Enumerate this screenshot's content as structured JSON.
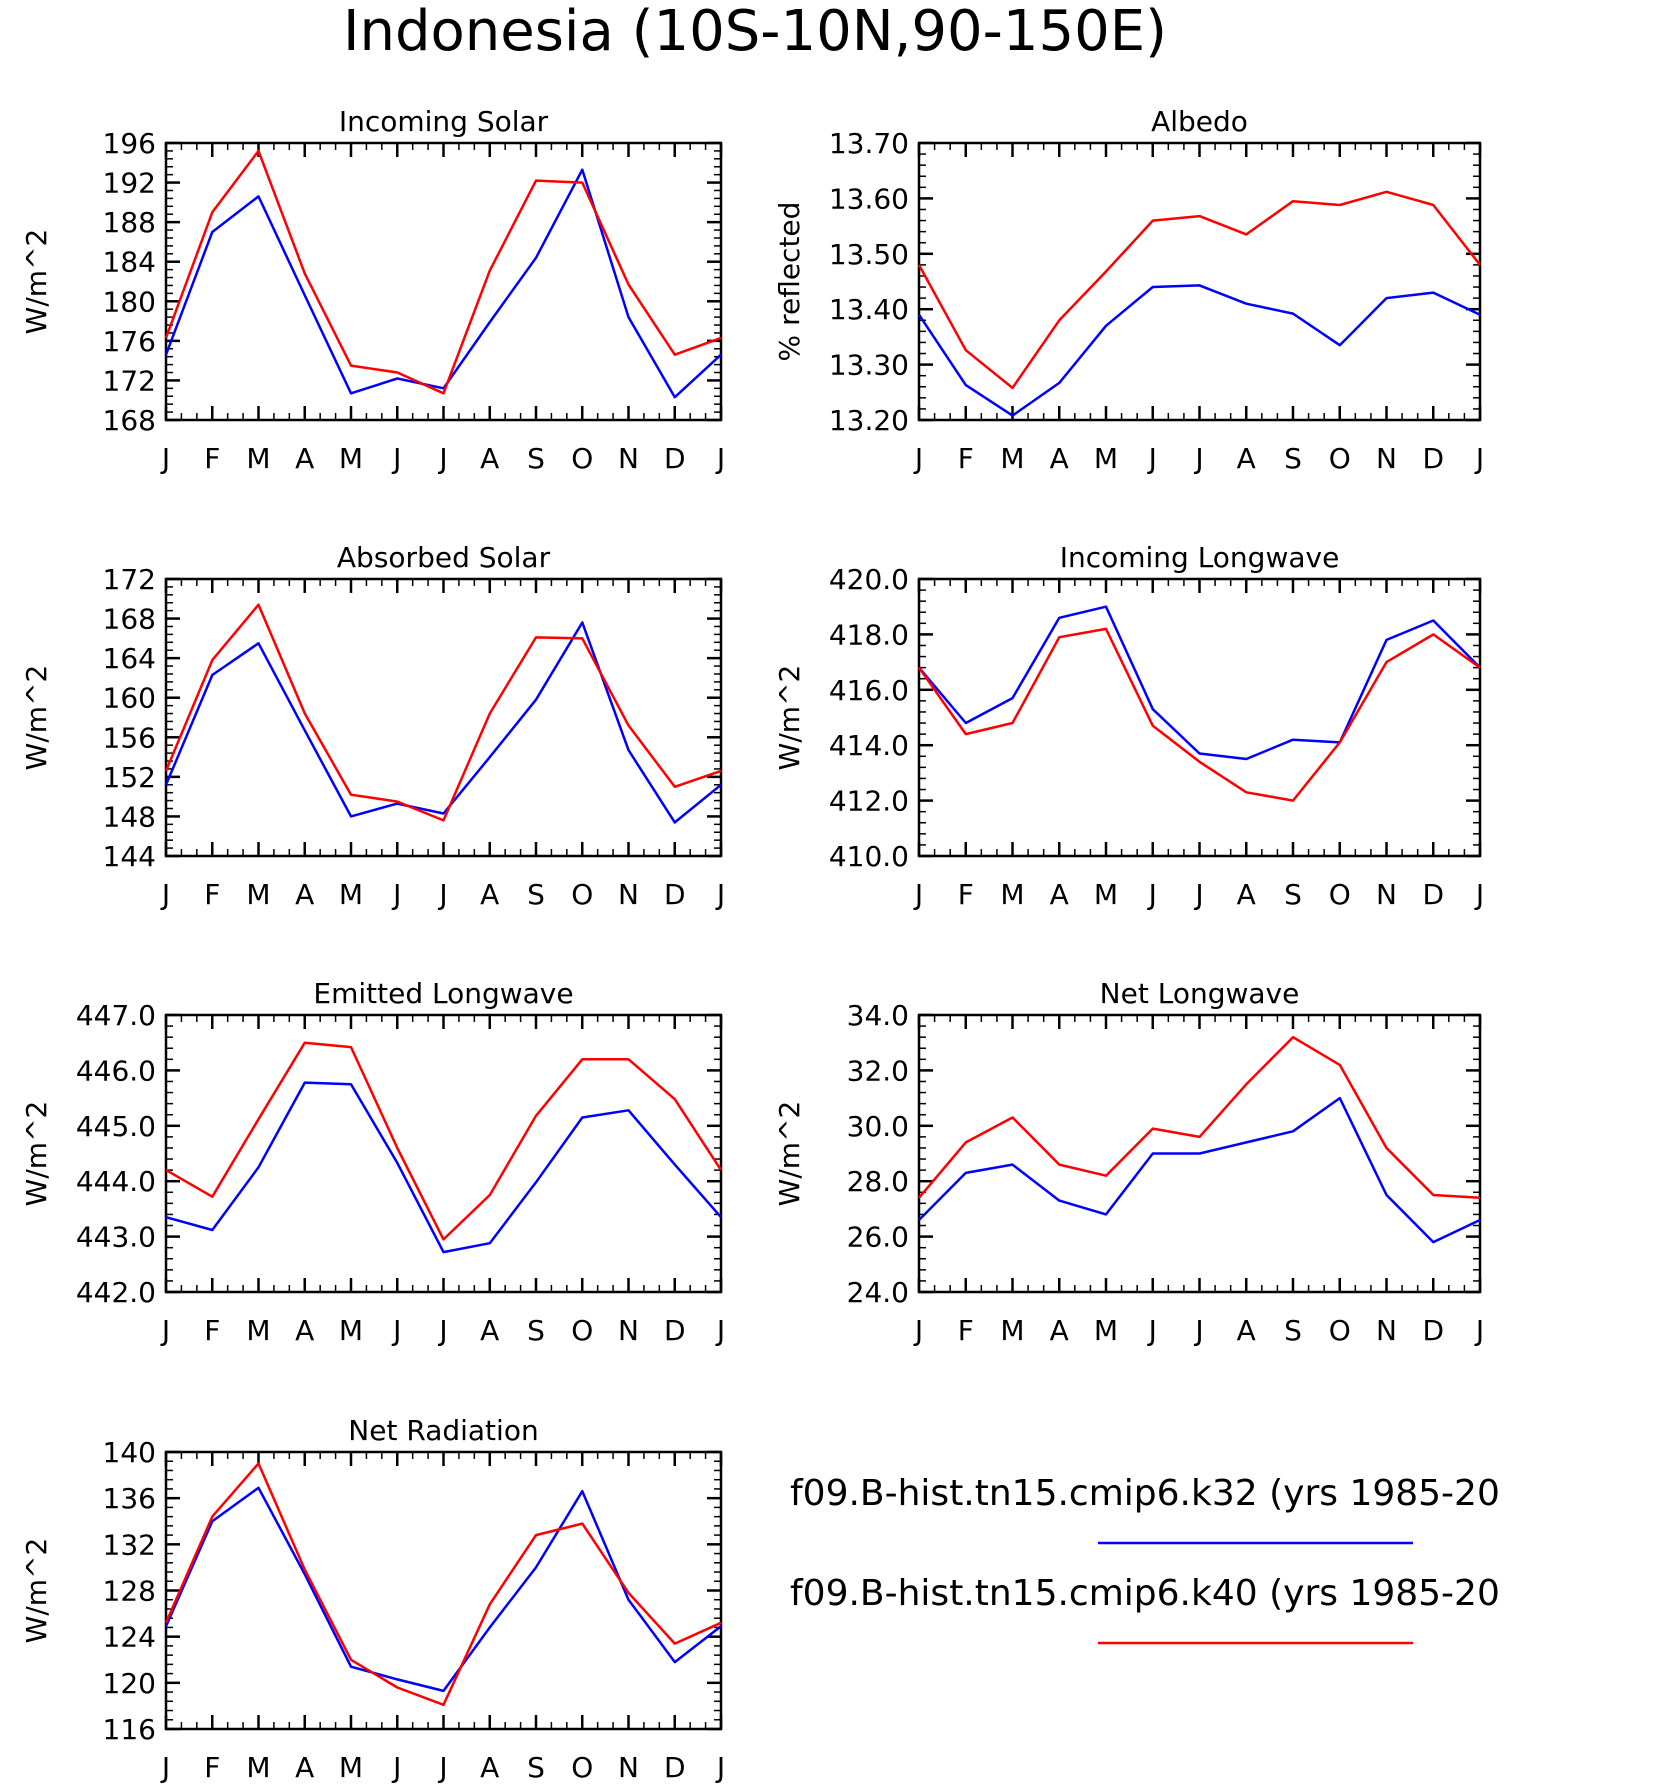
{
  "page_title": "Indonesia (10S-10N,90-150E)",
  "legend": [
    {
      "label": "f09.B-hist.tn15.cmip6.k32 (yrs 1985-20",
      "color": "#0000ff"
    },
    {
      "label": "f09.B-hist.tn15.cmip6.k40 (yrs 1985-20",
      "color": "#ff0000"
    }
  ],
  "chart_data": [
    {
      "type": "line",
      "title": "Incoming Solar",
      "ylabel": "W/m^2",
      "categories": [
        "J",
        "F",
        "M",
        "A",
        "M",
        "J",
        "J",
        "A",
        "S",
        "O",
        "N",
        "D",
        "J"
      ],
      "ylim": [
        168,
        196
      ],
      "yticks": [
        "168",
        "172",
        "176",
        "180",
        "184",
        "188",
        "192",
        "196"
      ],
      "series": [
        {
          "color": "#0000ff",
          "values": [
            174.6,
            187.0,
            190.6,
            180.6,
            170.7,
            172.2,
            171.2,
            177.9,
            184.4,
            193.3,
            178.4,
            170.3,
            174.6
          ]
        },
        {
          "color": "#ff0000",
          "values": [
            176.3,
            189.0,
            195.2,
            182.8,
            173.5,
            172.8,
            170.7,
            183.1,
            192.2,
            192.0,
            181.7,
            174.6,
            176.3
          ]
        }
      ]
    },
    {
      "type": "line",
      "title": "Albedo",
      "ylabel": "% reflected",
      "categories": [
        "J",
        "F",
        "M",
        "A",
        "M",
        "J",
        "J",
        "A",
        "S",
        "O",
        "N",
        "D",
        "J"
      ],
      "ylim": [
        13.2,
        13.7
      ],
      "yticks": [
        "13.20",
        "13.30",
        "13.40",
        "13.50",
        "13.60",
        "13.70"
      ],
      "series": [
        {
          "color": "#0000ff",
          "values": [
            13.39,
            13.263,
            13.208,
            13.267,
            13.37,
            13.44,
            13.443,
            13.41,
            13.392,
            13.335,
            13.42,
            13.43,
            13.39
          ]
        },
        {
          "color": "#ff0000",
          "values": [
            13.48,
            13.326,
            13.258,
            13.38,
            13.468,
            13.56,
            13.568,
            13.535,
            13.595,
            13.588,
            13.612,
            13.588,
            13.48
          ]
        }
      ]
    },
    {
      "type": "line",
      "title": "Absorbed Solar",
      "ylabel": "W/m^2",
      "categories": [
        "J",
        "F",
        "M",
        "A",
        "M",
        "J",
        "J",
        "A",
        "S",
        "O",
        "N",
        "D",
        "J"
      ],
      "ylim": [
        144,
        172
      ],
      "yticks": [
        "144",
        "148",
        "152",
        "156",
        "160",
        "164",
        "168",
        "172"
      ],
      "series": [
        {
          "color": "#0000ff",
          "values": [
            151.2,
            162.3,
            165.5,
            156.7,
            148.0,
            149.3,
            148.3,
            154.0,
            159.8,
            167.6,
            154.7,
            147.4,
            151.2
          ]
        },
        {
          "color": "#ff0000",
          "values": [
            152.6,
            163.8,
            169.4,
            158.4,
            150.2,
            149.5,
            147.6,
            158.4,
            166.1,
            166.0,
            157.2,
            151.0,
            152.6
          ]
        }
      ]
    },
    {
      "type": "line",
      "title": "Incoming Longwave",
      "ylabel": "W/m^2",
      "categories": [
        "J",
        "F",
        "M",
        "A",
        "M",
        "J",
        "J",
        "A",
        "S",
        "O",
        "N",
        "D",
        "J"
      ],
      "ylim": [
        410,
        420
      ],
      "yticks": [
        "410.0",
        "412.0",
        "414.0",
        "416.0",
        "418.0",
        "420.0"
      ],
      "series": [
        {
          "color": "#0000ff",
          "values": [
            416.8,
            414.8,
            415.7,
            418.6,
            419.0,
            415.3,
            413.7,
            413.5,
            414.2,
            414.1,
            417.8,
            418.5,
            416.8
          ]
        },
        {
          "color": "#ff0000",
          "values": [
            416.8,
            414.4,
            414.8,
            417.9,
            418.2,
            414.7,
            413.4,
            412.3,
            412.0,
            414.1,
            417.0,
            418.0,
            416.8
          ]
        }
      ]
    },
    {
      "type": "line",
      "title": "Emitted Longwave",
      "ylabel": "W/m^2",
      "categories": [
        "J",
        "F",
        "M",
        "A",
        "M",
        "J",
        "J",
        "A",
        "S",
        "O",
        "N",
        "D",
        "J"
      ],
      "ylim": [
        442,
        447
      ],
      "yticks": [
        "442.0",
        "443.0",
        "444.0",
        "445.0",
        "446.0",
        "447.0"
      ],
      "series": [
        {
          "color": "#0000ff",
          "values": [
            443.35,
            443.12,
            444.25,
            445.78,
            445.75,
            444.33,
            442.72,
            442.88,
            443.98,
            445.15,
            445.28,
            444.3,
            443.35
          ]
        },
        {
          "color": "#ff0000",
          "values": [
            444.2,
            443.72,
            445.12,
            446.5,
            446.42,
            444.6,
            442.95,
            443.75,
            445.18,
            446.2,
            446.2,
            445.48,
            444.2
          ]
        }
      ]
    },
    {
      "type": "line",
      "title": "Net Longwave",
      "ylabel": "W/m^2",
      "categories": [
        "J",
        "F",
        "M",
        "A",
        "M",
        "J",
        "J",
        "A",
        "S",
        "O",
        "N",
        "D",
        "J"
      ],
      "ylim": [
        24,
        34
      ],
      "yticks": [
        "24.0",
        "26.0",
        "28.0",
        "30.0",
        "32.0",
        "34.0"
      ],
      "series": [
        {
          "color": "#0000ff",
          "values": [
            26.6,
            28.3,
            28.6,
            27.3,
            26.8,
            29.0,
            29.0,
            29.4,
            29.8,
            31.0,
            27.5,
            25.8,
            26.6
          ]
        },
        {
          "color": "#ff0000",
          "values": [
            27.4,
            29.4,
            30.3,
            28.6,
            28.2,
            29.9,
            29.6,
            31.5,
            33.2,
            32.2,
            29.2,
            27.5,
            27.4
          ]
        }
      ]
    },
    {
      "type": "line",
      "title": "Net Radiation",
      "ylabel": "W/m^2",
      "categories": [
        "J",
        "F",
        "M",
        "A",
        "M",
        "J",
        "J",
        "A",
        "S",
        "O",
        "N",
        "D",
        "J"
      ],
      "ylim": [
        116,
        140
      ],
      "yticks": [
        "116",
        "120",
        "124",
        "128",
        "132",
        "136",
        "140"
      ],
      "series": [
        {
          "color": "#0000ff",
          "values": [
            124.9,
            134.0,
            136.9,
            129.4,
            121.4,
            120.3,
            119.3,
            124.8,
            130.0,
            136.6,
            127.2,
            121.8,
            124.9
          ]
        },
        {
          "color": "#ff0000",
          "values": [
            125.2,
            134.4,
            139.0,
            129.8,
            122.0,
            119.6,
            118.1,
            126.8,
            132.8,
            133.8,
            127.8,
            123.4,
            125.2
          ]
        }
      ]
    }
  ]
}
